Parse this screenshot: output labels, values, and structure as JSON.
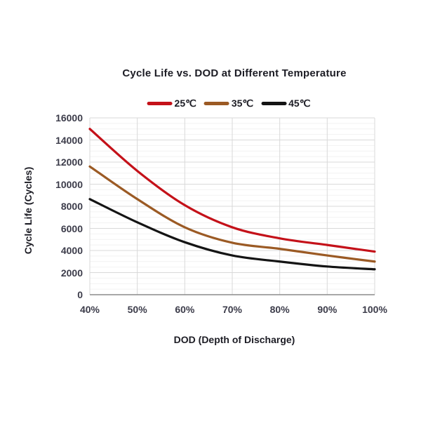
{
  "chart_data": {
    "type": "line",
    "title": "Cycle Life vs. DOD at Different Temperature",
    "xlabel": "DOD (Depth of Discharge)",
    "ylabel": "Cycle Life (Cycles)",
    "x": [
      40,
      50,
      60,
      70,
      80,
      90,
      100
    ],
    "x_tick_labels": [
      "40%",
      "50%",
      "60%",
      "70%",
      "80%",
      "90%",
      "100%"
    ],
    "y_ticks": [
      0,
      2000,
      4000,
      6000,
      8000,
      10000,
      12000,
      14000,
      16000
    ],
    "ylim": [
      0,
      16000
    ],
    "grid": true,
    "minor_grid_step": 500,
    "legend_position": "top",
    "series": [
      {
        "name": "25℃",
        "color": "#c41119",
        "values": [
          15000,
          11200,
          8100,
          6100,
          5100,
          4500,
          3900
        ]
      },
      {
        "name": "35℃",
        "color": "#9b5a24",
        "values": [
          11600,
          8650,
          6100,
          4700,
          4150,
          3550,
          3000
        ]
      },
      {
        "name": "45℃",
        "color": "#141414",
        "values": [
          8650,
          6550,
          4750,
          3550,
          3000,
          2550,
          2300
        ]
      }
    ],
    "colors": {
      "major_grid": "#d9d9d9",
      "minor_grid": "#f2f2f2",
      "axis_line": "#8c8c8c",
      "title_text": "#1c1c24",
      "tick_text": "#3c3c4a",
      "background": "#ffffff"
    }
  }
}
